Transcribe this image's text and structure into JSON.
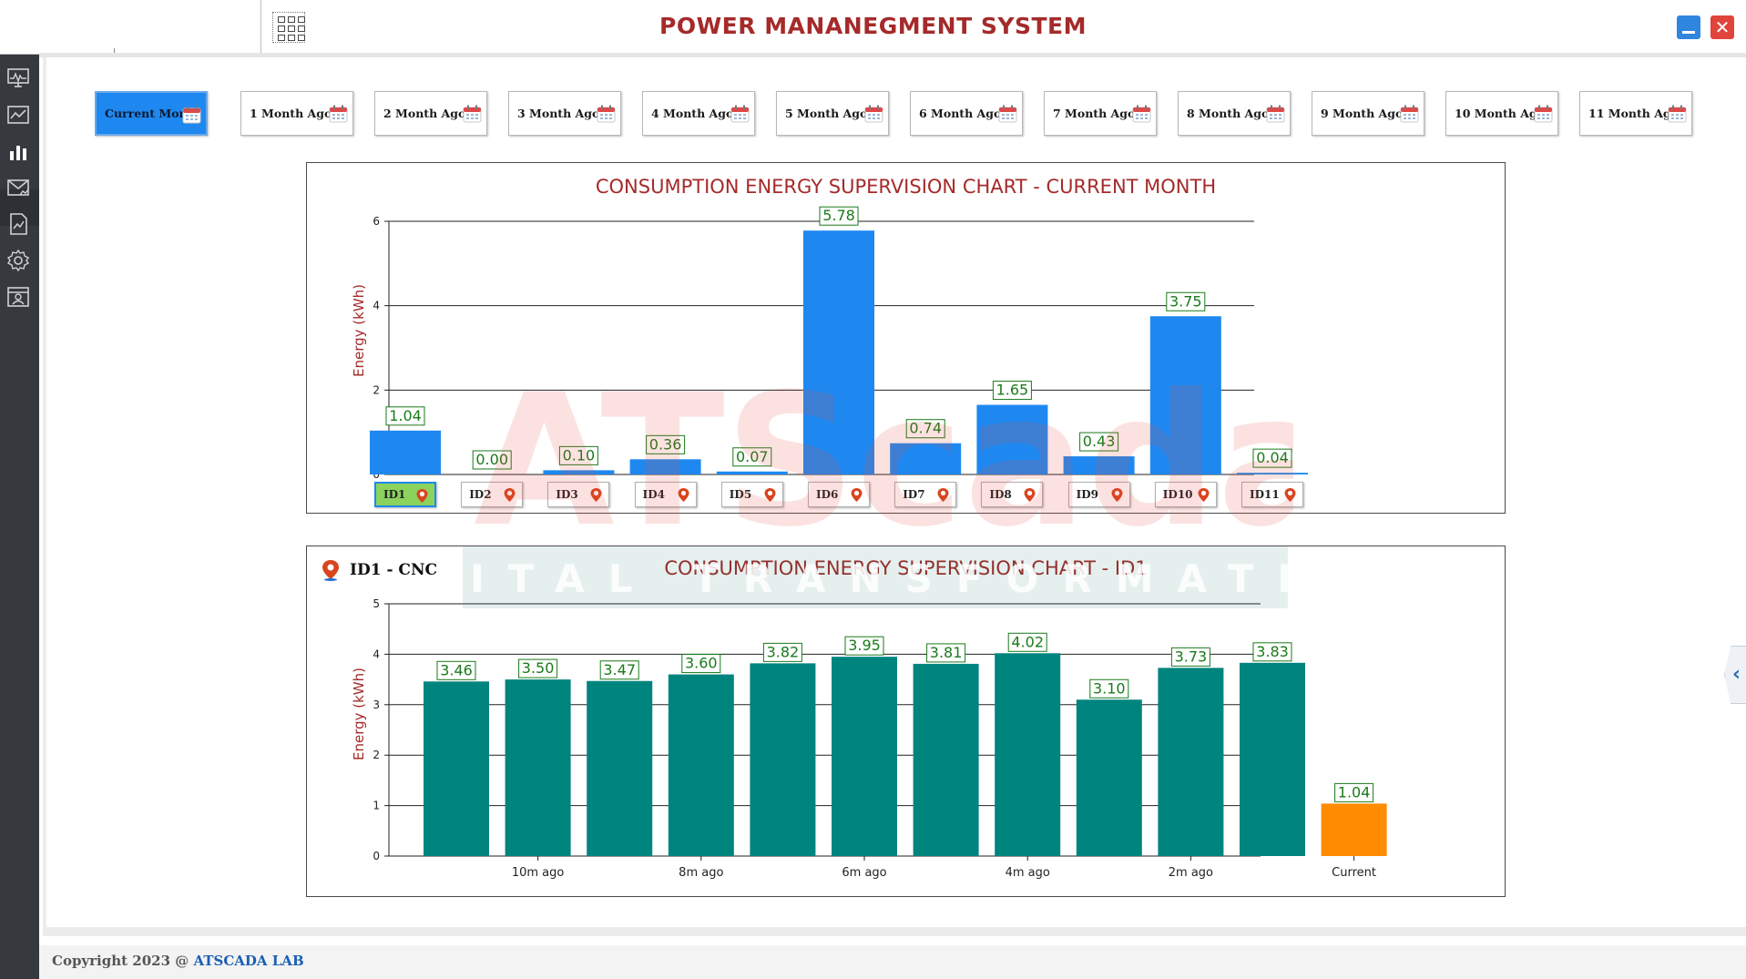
{
  "header": {
    "title": "POWER MANANEGMENT SYSTEM",
    "close_symbol": "✕"
  },
  "sidebar": {
    "items": [
      {
        "name": "monitor-icon"
      },
      {
        "name": "trend-chart-icon"
      },
      {
        "name": "bar-chart-icon"
      },
      {
        "name": "mail-report-icon"
      },
      {
        "name": "report-icon"
      },
      {
        "name": "gear-icon"
      },
      {
        "name": "user-card-icon"
      }
    ],
    "active_index": 2
  },
  "month_tabs": [
    {
      "label": "Current Month",
      "active": true
    },
    {
      "label": "1 Month Ago"
    },
    {
      "label": "2 Month Ago"
    },
    {
      "label": "3 Month Ago"
    },
    {
      "label": "4 Month Ago"
    },
    {
      "label": "5 Month Ago"
    },
    {
      "label": "6 Month Ago"
    },
    {
      "label": "7 Month Ago"
    },
    {
      "label": "8 Month Ago"
    },
    {
      "label": "9 Month Ago"
    },
    {
      "label": "10 Month Ago"
    },
    {
      "label": "11 Month Ago"
    }
  ],
  "selected_device": {
    "label": "ID1 - CNC"
  },
  "watermark": {
    "logo": "ATScada",
    "tagline": "DIGITAL TRANSFORMATION"
  },
  "footer": {
    "copyright": "Copyright 2023 @",
    "company": "ATSCADA LAB"
  },
  "colors": {
    "title_red": "#a52a2a",
    "bar_blue": "#1e88f0",
    "bar_teal": "#00847e",
    "bar_orange": "#ff8c00",
    "label_green": "#1a7a1a"
  },
  "chart_data": [
    {
      "type": "bar",
      "title": "CONSUMPTION ENERGY SUPERVISION CHART - CURRENT MONTH",
      "ylabel": "Energy (kWh)",
      "ylim": [
        0,
        6
      ],
      "yticks": [
        0,
        2,
        4,
        6
      ],
      "categories": [
        "ID1",
        "ID2",
        "ID3",
        "ID4",
        "ID5",
        "ID6",
        "ID7",
        "ID8",
        "ID9",
        "ID10",
        "ID11"
      ],
      "values": [
        1.04,
        0.0,
        0.1,
        0.36,
        0.07,
        5.78,
        0.74,
        1.65,
        0.43,
        3.75,
        0.04
      ],
      "value_labels": [
        "1.04",
        "0.00",
        "0.10",
        "0.36",
        "0.07",
        "5.78",
        "0.74",
        "1.65",
        "0.43",
        "3.75",
        "0.04"
      ],
      "selected_category": "ID1",
      "grid": true,
      "legend": "none"
    },
    {
      "type": "bar",
      "title": "CONSUMPTION ENERGY SUPERVISION CHART - ID1",
      "ylabel": "Energy (kWh)",
      "ylim": [
        0,
        5
      ],
      "yticks": [
        0,
        1,
        2,
        3,
        4,
        5
      ],
      "values": [
        3.46,
        3.5,
        3.47,
        3.6,
        3.82,
        3.95,
        3.81,
        4.02,
        3.1,
        3.73,
        3.83,
        1.04
      ],
      "value_labels": [
        "3.46",
        "3.50",
        "3.47",
        "3.60",
        "3.82",
        "3.95",
        "3.81",
        "4.02",
        "3.10",
        "3.73",
        "3.83",
        "1.04"
      ],
      "x_tick_labels": [
        "",
        "10m ago",
        "",
        "8m ago",
        "",
        "6m ago",
        "",
        "4m ago",
        "",
        "2m ago",
        "",
        "Current"
      ],
      "highlight_index": 11,
      "grid": true,
      "legend": "none"
    }
  ]
}
